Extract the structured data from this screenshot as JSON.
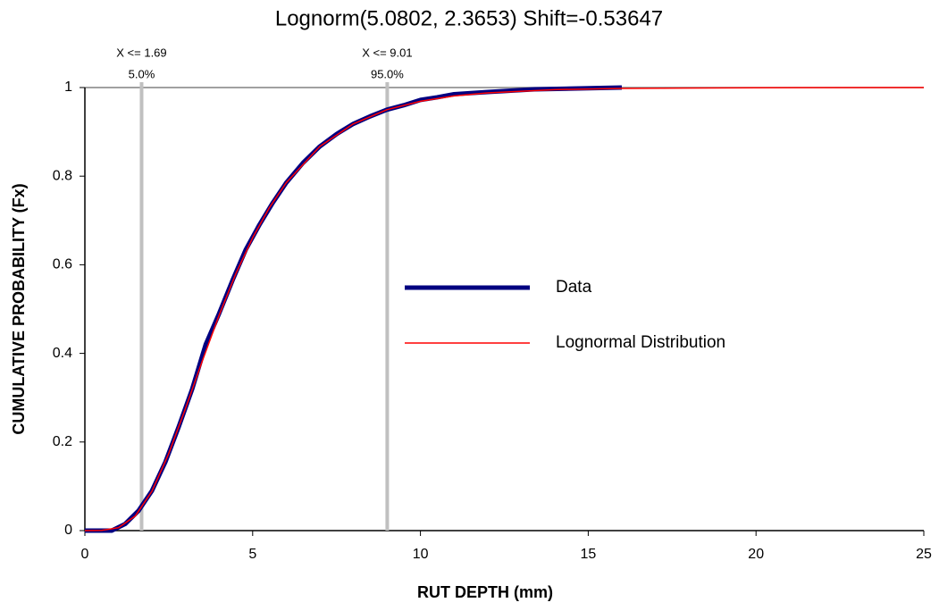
{
  "chart_data": {
    "type": "line",
    "title": "Lognorm(5.0802, 2.3653) Shift=-0.53647",
    "x_label": "RUT DEPTH (mm)",
    "y_label": "CUMULATIVE PROBABILITY (Fx)",
    "xlim": [
      0,
      25
    ],
    "xticks": [
      0,
      5,
      10,
      15,
      20,
      25
    ],
    "ylim": [
      0,
      1
    ],
    "yticks": [
      0,
      0.2,
      0.4,
      0.6,
      0.8,
      1
    ],
    "legend": "center-right",
    "series": [
      {
        "name": "Data",
        "color": "#000080",
        "x": [
          0,
          0.8,
          1.2,
          1.6,
          2.0,
          2.4,
          2.8,
          3.2,
          3.6,
          4.0,
          4.4,
          4.8,
          5.2,
          5.6,
          6.0,
          6.5,
          7.0,
          7.5,
          8.0,
          8.5,
          9.0,
          9.5,
          10.0,
          10.5,
          11.0,
          12.0,
          13.4,
          16.0
        ],
        "values": [
          0,
          0.0,
          0.015,
          0.045,
          0.09,
          0.155,
          0.235,
          0.32,
          0.42,
          0.49,
          0.565,
          0.635,
          0.69,
          0.74,
          0.785,
          0.83,
          0.867,
          0.895,
          0.918,
          0.935,
          0.95,
          0.96,
          0.972,
          0.978,
          0.985,
          0.99,
          0.996,
          1.0
        ]
      },
      {
        "name": "Lognormal Distribution",
        "color": "#ff0000",
        "x": [
          0,
          0.5,
          1,
          1.5,
          2,
          2.5,
          3,
          3.5,
          4,
          4.5,
          5,
          5.5,
          6,
          7,
          8,
          9,
          10,
          11,
          12,
          14,
          16,
          20,
          25
        ],
        "values": [
          0,
          0.0004,
          0.0066,
          0.0327,
          0.089,
          0.174,
          0.276,
          0.383,
          0.486,
          0.58,
          0.661,
          0.729,
          0.785,
          0.867,
          0.918,
          0.95,
          0.969,
          0.981,
          0.988,
          0.9953,
          0.998,
          0.9996,
          1.0
        ]
      }
    ],
    "markers": [
      {
        "x": {
          "value": 1.69,
          "label": "X <= 1.69"
        },
        "p": {
          "value": 5,
          "label": "5.0%"
        }
      },
      {
        "x": {
          "value": 9.01,
          "label": "X <= 9.01"
        },
        "p": {
          "value": 95,
          "label": "95.0%"
        }
      }
    ]
  }
}
